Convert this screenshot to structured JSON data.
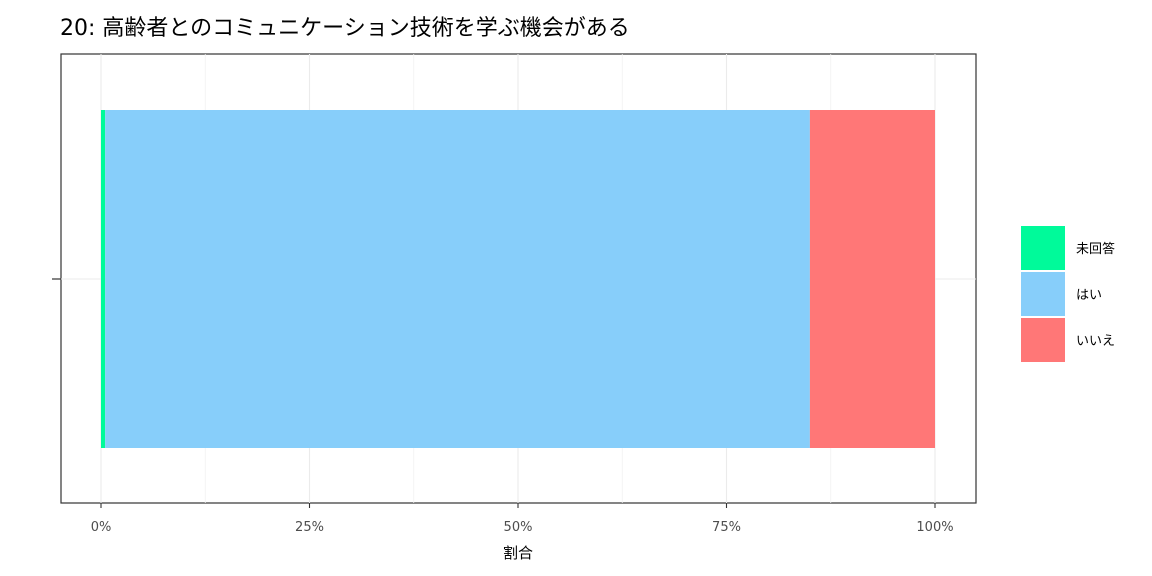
{
  "chart_data": {
    "type": "bar",
    "orientation": "horizontal",
    "stacked": true,
    "title": "20: 高齢者とのコミュニケーション技術を学ぶ機会がある",
    "xlabel": "割合",
    "ylabel": "",
    "xlim": [
      0,
      1
    ],
    "x_ticks": [
      "0%",
      "25%",
      "50%",
      "75%",
      "100%"
    ],
    "x_tick_values": [
      0,
      0.25,
      0.5,
      0.75,
      1.0
    ],
    "series": [
      {
        "name": "未回答",
        "value": 0.005,
        "color": "#00FA9A"
      },
      {
        "name": "はい",
        "value": 0.845,
        "color": "#87CEFA"
      },
      {
        "name": "いいえ",
        "value": 0.15,
        "color": "#FF7777"
      }
    ],
    "grid": true,
    "legend_position": "right"
  }
}
